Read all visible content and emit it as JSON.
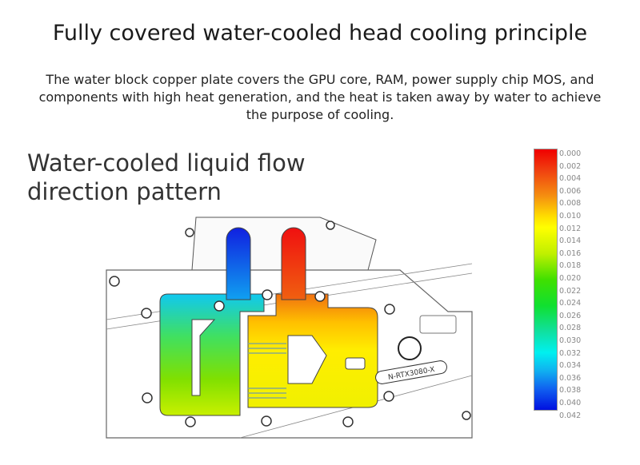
{
  "title": "Fully covered water-cooled head cooling principle",
  "description": "The water block copper plate covers the GPU core, RAM, power supply chip MOS, and components with high heat generation, and the heat is taken away by water to achieve the purpose of cooling.",
  "heading_line1": "Water-cooled liquid flow",
  "heading_line2": "direction pattern",
  "block_label": "N-RTX3080-X",
  "legend": {
    "labels": [
      "0.000",
      "0.002",
      "0.004",
      "0.006",
      "0.008",
      "0.010",
      "0.012",
      "0.014",
      "0.016",
      "0.018",
      "0.020",
      "0.022",
      "0.024",
      "0.026",
      "0.028",
      "0.030",
      "0.032",
      "0.034",
      "0.036",
      "0.038",
      "0.040",
      "0.042"
    ],
    "colors": {
      "low": "#f00000",
      "mid": "#20e020",
      "high": "#0010e0"
    }
  },
  "ports": {
    "inlet_color": "#1030f0",
    "outlet_color": "#f01010"
  }
}
